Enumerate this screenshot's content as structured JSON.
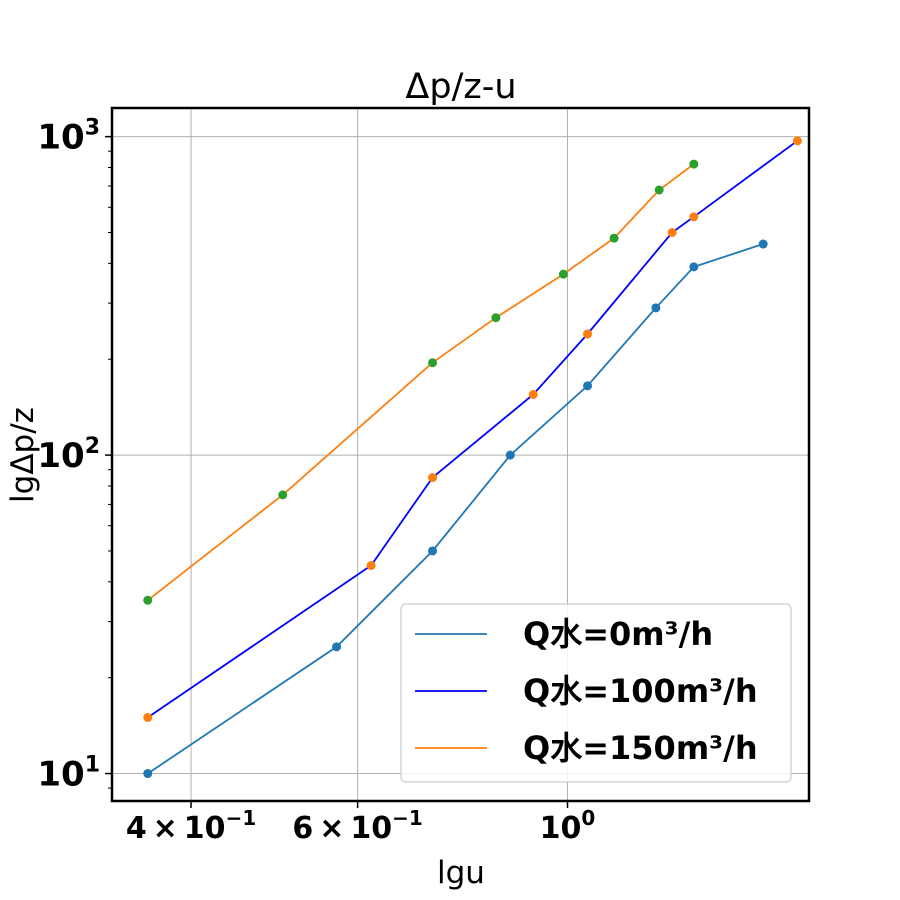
{
  "chart_data": {
    "type": "line",
    "title": "Δp/z-u",
    "xlabel": "lgu",
    "ylabel": "lgΔp/z",
    "x_scale": "log",
    "y_scale": "log",
    "xlim": [
      0.33,
      1.8
    ],
    "ylim": [
      8.2,
      1230
    ],
    "grid": true,
    "legend_position": "lower-right",
    "x_ticks": [
      {
        "value": 0.4,
        "mantissa": "4",
        "exponent": "−1"
      },
      {
        "value": 0.6,
        "mantissa": "6",
        "exponent": "−1"
      },
      {
        "value": 1.0,
        "mantissa": "",
        "exponent": "0"
      }
    ],
    "y_ticks": [
      {
        "value": 10,
        "exponent": "1"
      },
      {
        "value": 100,
        "exponent": "2"
      },
      {
        "value": 1000,
        "exponent": "3"
      }
    ],
    "series": [
      {
        "name": "Q水=0m³/h",
        "line_color": "#1f77b4",
        "marker_color": "#1f77b4",
        "x": [
          0.36,
          0.57,
          0.72,
          0.87,
          1.05,
          1.24,
          1.36,
          1.61
        ],
        "y": [
          10,
          25,
          50,
          100,
          165,
          290,
          390,
          460
        ]
      },
      {
        "name": "Q水=100m³/h",
        "line_color": "#0000ff",
        "marker_color": "#ff7f0e",
        "x": [
          0.36,
          0.62,
          0.72,
          0.92,
          1.05,
          1.29,
          1.36,
          1.75
        ],
        "y": [
          15,
          45,
          85,
          155,
          240,
          500,
          560,
          970
        ]
      },
      {
        "name": "Q水=150m³/h",
        "line_color": "#ff7f0e",
        "marker_color": "#2ca02c",
        "x": [
          0.36,
          0.5,
          0.72,
          0.84,
          0.99,
          1.12,
          1.25,
          1.36
        ],
        "y": [
          35,
          75,
          195,
          270,
          370,
          480,
          680,
          820
        ]
      }
    ]
  }
}
